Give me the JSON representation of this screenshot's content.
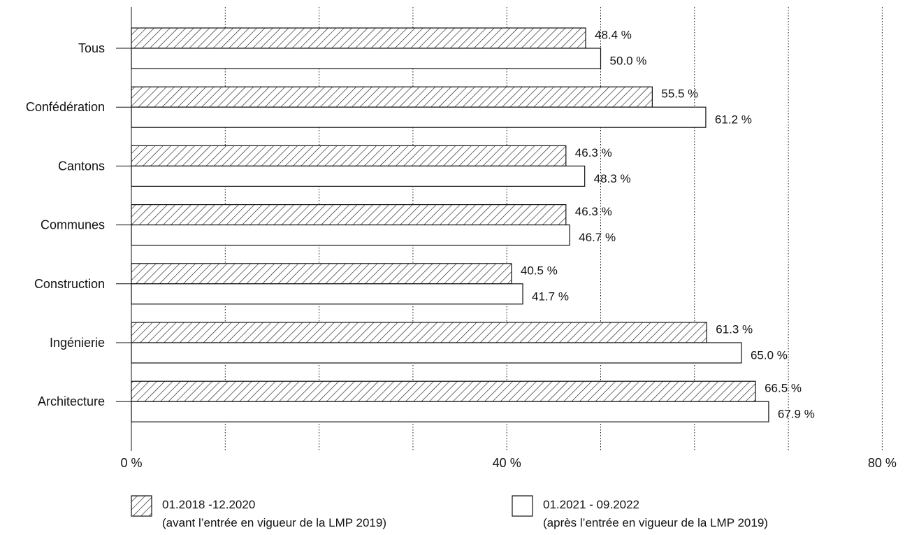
{
  "chart_data": {
    "type": "bar",
    "orientation": "horizontal",
    "categories": [
      "Tous",
      "Confédération",
      "Cantons",
      "Communes",
      "Construction",
      "Ingénierie",
      "Architecture"
    ],
    "series": [
      {
        "name": "01.2018 -12.2020",
        "name_line2": "(avant l’entrée en vigueur de la LMP 2019)",
        "pattern": "hatched",
        "values": [
          48.4,
          55.5,
          46.3,
          46.3,
          40.5,
          61.3,
          66.5
        ],
        "labels": [
          "48.4 %",
          "55.5 %",
          "46.3 %",
          "46.3 %",
          "40.5 %",
          "61.3 %",
          "66.5 %"
        ]
      },
      {
        "name": "01.2021 - 09.2022",
        "name_line2": "(après l’entrée en vigueur de la LMP 2019)",
        "pattern": "white",
        "values": [
          50.0,
          61.2,
          48.3,
          46.7,
          41.7,
          65.0,
          67.9
        ],
        "labels": [
          "50.0 %",
          "61.2 %",
          "48.3 %",
          "46.7 %",
          "41.7 %",
          "65.0 %",
          "67.9 %"
        ]
      }
    ],
    "xlim": [
      0,
      80
    ],
    "x_ticks": [
      {
        "value": 0,
        "label": "0 %"
      },
      {
        "value": 40,
        "label": "40 %"
      },
      {
        "value": 80,
        "label": "80 %"
      }
    ],
    "grid_values": [
      10,
      20,
      30,
      40,
      50,
      60,
      70,
      80
    ],
    "grid": "vertical dotted",
    "legend_position": "bottom",
    "colors": {
      "stroke": "#111111",
      "fill": "#ffffff"
    }
  }
}
